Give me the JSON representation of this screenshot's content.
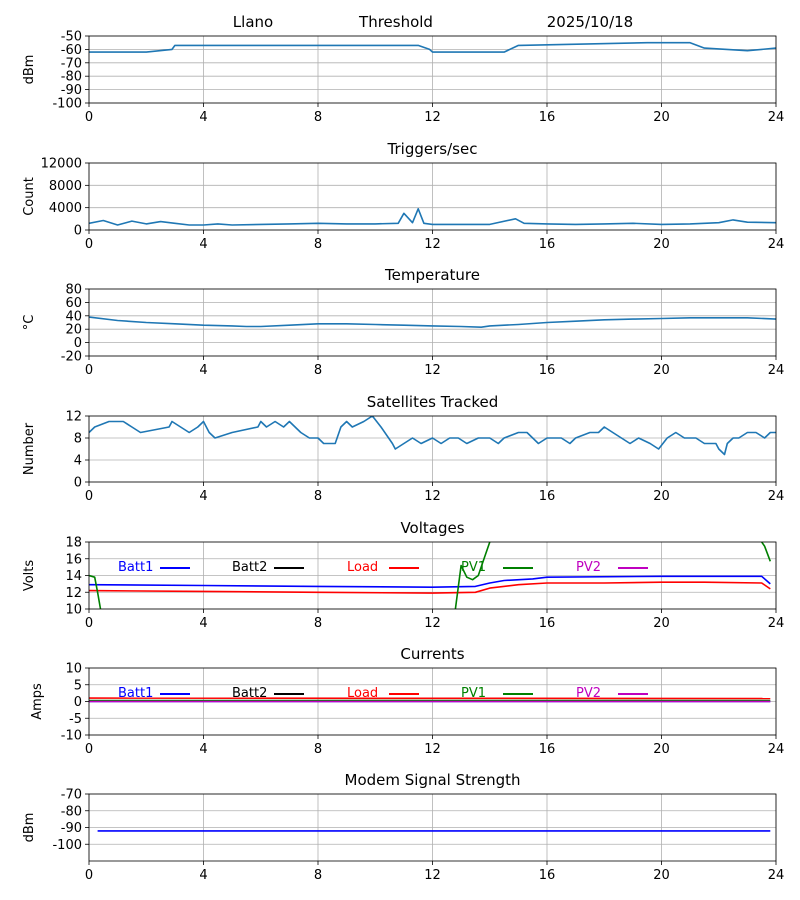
{
  "header": {
    "station": "Llano",
    "mode": "Threshold",
    "date": "2025/10/18"
  },
  "legend_entries": [
    {
      "name": "Batt1",
      "color": "#0000ff"
    },
    {
      "name": "Batt2",
      "color": "#000000"
    },
    {
      "name": "Load",
      "color": "#ff0000"
    },
    {
      "name": "PV1",
      "color": "#008000"
    },
    {
      "name": "PV2",
      "color": "#bf00bf"
    }
  ],
  "chart_data": [
    {
      "type": "line",
      "title": "",
      "ylabel": "dBm",
      "xlim": [
        0,
        24
      ],
      "ylim": [
        -100,
        -50
      ],
      "xticks": [
        0,
        4,
        8,
        12,
        16,
        20,
        24
      ],
      "yticks": [
        -100,
        -90,
        -80,
        -70,
        -60,
        -50
      ],
      "grid": true,
      "series": [
        {
          "color": "#1f77b4",
          "x": [
            0,
            2,
            2.9,
            3,
            6,
            11.5,
            11.9,
            12,
            14.5,
            15,
            19.5,
            21,
            21.5,
            23,
            24
          ],
          "y": [
            -62,
            -62,
            -60,
            -57,
            -57,
            -57,
            -60,
            -62,
            -62,
            -57,
            -55,
            -55,
            -59,
            -61,
            -59
          ]
        }
      ]
    },
    {
      "type": "line",
      "title": "Triggers/sec",
      "ylabel": "Count",
      "xlim": [
        0,
        24
      ],
      "ylim": [
        0,
        12000
      ],
      "xticks": [
        0,
        4,
        8,
        12,
        16,
        20,
        24
      ],
      "yticks": [
        0,
        4000,
        8000,
        12000
      ],
      "grid": true,
      "series": [
        {
          "color": "#1f77b4",
          "x": [
            0,
            0.5,
            1,
            1.5,
            2,
            2.5,
            3,
            3.5,
            4,
            4.5,
            5,
            6,
            7,
            8,
            9,
            10,
            10.8,
            11,
            11.3,
            11.5,
            11.7,
            12,
            13,
            14,
            14.9,
            15.2,
            16,
            17,
            18,
            19,
            20,
            21,
            22,
            22.5,
            23,
            24
          ],
          "y": [
            1200,
            1700,
            900,
            1600,
            1100,
            1500,
            1200,
            900,
            900,
            1100,
            900,
            1000,
            1100,
            1200,
            1100,
            1100,
            1200,
            3000,
            1300,
            3800,
            1200,
            1000,
            1000,
            1000,
            2000,
            1200,
            1100,
            1000,
            1100,
            1200,
            1000,
            1100,
            1300,
            1800,
            1400,
            1300
          ]
        }
      ]
    },
    {
      "type": "line",
      "title": "Temperature",
      "ylabel": "°C",
      "xlim": [
        0,
        24
      ],
      "ylim": [
        -20,
        80
      ],
      "xticks": [
        0,
        4,
        8,
        12,
        16,
        20,
        24
      ],
      "yticks": [
        -20,
        0,
        20,
        40,
        60,
        80
      ],
      "grid": true,
      "series": [
        {
          "color": "#1f77b4",
          "x": [
            0,
            1,
            2,
            3,
            4,
            5,
            5.5,
            6,
            7,
            8,
            9,
            10,
            11,
            12,
            13,
            13.7,
            14,
            15,
            16,
            17,
            18,
            19,
            20,
            21,
            22,
            23,
            24
          ],
          "y": [
            38,
            33,
            30,
            28,
            26,
            25,
            24,
            24,
            26,
            28,
            28,
            27,
            26,
            25,
            24,
            23,
            25,
            27,
            30,
            32,
            34,
            35,
            36,
            37,
            37,
            37,
            35
          ]
        }
      ]
    },
    {
      "type": "line",
      "title": "Satellites Tracked",
      "ylabel": "Number",
      "xlim": [
        0,
        24
      ],
      "ylim": [
        0,
        12
      ],
      "xticks": [
        0,
        4,
        8,
        12,
        16,
        20,
        24
      ],
      "yticks": [
        0,
        4,
        8,
        12
      ],
      "grid": true,
      "series": [
        {
          "color": "#1f77b4",
          "x": [
            0,
            0.2,
            0.7,
            1.2,
            1.5,
            1.8,
            2.8,
            2.9,
            3.2,
            3.5,
            3.8,
            4,
            4.2,
            4.4,
            5,
            5.9,
            6,
            6.2,
            6.5,
            6.8,
            7,
            7.2,
            7.4,
            7.7,
            8,
            8.2,
            8.6,
            8.8,
            9,
            9.2,
            9.6,
            9.9,
            10.2,
            10.6,
            10.7,
            11,
            11.3,
            11.6,
            12,
            12.3,
            12.6,
            12.9,
            13.2,
            13.6,
            14,
            14.3,
            14.5,
            15,
            15.3,
            15.7,
            16,
            16.5,
            16.8,
            17,
            17.5,
            17.8,
            18,
            18.3,
            18.6,
            18.9,
            19.2,
            19.6,
            19.9,
            20.2,
            20.5,
            20.8,
            21.2,
            21.5,
            21.9,
            22,
            22.2,
            22.3,
            22.5,
            22.7,
            23,
            23.3,
            23.6,
            23.8,
            24
          ],
          "y": [
            9,
            10,
            11,
            11,
            10,
            9,
            10,
            11,
            10,
            9,
            10,
            11,
            9,
            8,
            9,
            10,
            11,
            10,
            11,
            10,
            11,
            10,
            9,
            8,
            8,
            7,
            7,
            10,
            11,
            10,
            11,
            12,
            10,
            7,
            6,
            7,
            8,
            7,
            8,
            7,
            8,
            8,
            7,
            8,
            8,
            7,
            8,
            9,
            9,
            7,
            8,
            8,
            7,
            8,
            9,
            9,
            10,
            9,
            8,
            7,
            8,
            7,
            6,
            8,
            9,
            8,
            8,
            7,
            7,
            6,
            5,
            7,
            8,
            8,
            9,
            9,
            8,
            9,
            9
          ]
        }
      ]
    },
    {
      "type": "line",
      "title": "Voltages",
      "ylabel": "Volts",
      "xlim": [
        0,
        24
      ],
      "ylim": [
        10,
        18
      ],
      "xticks": [
        0,
        4,
        8,
        12,
        16,
        20,
        24
      ],
      "yticks": [
        10,
        12,
        14,
        16,
        18
      ],
      "grid": true,
      "series": [
        {
          "name": "Batt1",
          "color": "#0000ff",
          "x": [
            0,
            4,
            8,
            12,
            13.5,
            14,
            14.5,
            15.5,
            16,
            20,
            23.5,
            23.8
          ],
          "y": [
            12.9,
            12.8,
            12.7,
            12.6,
            12.7,
            13.1,
            13.4,
            13.6,
            13.8,
            13.9,
            13.9,
            13
          ]
        },
        {
          "name": "Load",
          "color": "#ff0000",
          "x": [
            0,
            4,
            8,
            12,
            13.5,
            14,
            15,
            16,
            18,
            20,
            21.5,
            23.5,
            23.8
          ],
          "y": [
            12.2,
            12.1,
            12,
            11.9,
            12,
            12.5,
            12.9,
            13.1,
            13.1,
            13.2,
            13.2,
            13.1,
            12.4
          ]
        },
        {
          "name": "PV1",
          "color": "#008000",
          "x": [
            0,
            0.2,
            0.3,
            0.4
          ],
          "y": [
            14,
            13.8,
            12,
            10
          ]
        },
        {
          "name": "PV1",
          "color": "#008000",
          "x": [
            12.8,
            13,
            13.2,
            13.4,
            13.6,
            13.8,
            14
          ],
          "y": [
            10,
            15.2,
            13.8,
            13.5,
            14,
            16,
            18
          ]
        },
        {
          "name": "PV1",
          "color": "#008000",
          "x": [
            23.5,
            23.6,
            23.8
          ],
          "y": [
            18,
            17.5,
            15.7
          ]
        }
      ]
    },
    {
      "type": "line",
      "title": "Currents",
      "ylabel": "Amps",
      "xlim": [
        0,
        24
      ],
      "ylim": [
        -10,
        10
      ],
      "xticks": [
        0,
        4,
        8,
        12,
        16,
        20,
        24
      ],
      "yticks": [
        -10,
        -5,
        0,
        5,
        10
      ],
      "grid": true,
      "series": [
        {
          "name": "Batt1",
          "color": "#0000ff",
          "x": [
            0,
            23.8
          ],
          "y": [
            0,
            0
          ]
        },
        {
          "name": "Load",
          "color": "#ff0000",
          "x": [
            0,
            23.8
          ],
          "y": [
            1,
            0.9
          ]
        },
        {
          "name": "PV1",
          "color": "#008000",
          "x": [
            0,
            23.8
          ],
          "y": [
            0.3,
            0.3
          ]
        },
        {
          "name": "PV2",
          "color": "#bf00bf",
          "x": [
            0,
            23.8
          ],
          "y": [
            0,
            0
          ]
        }
      ]
    },
    {
      "type": "line",
      "title": "Modem Signal Strength",
      "ylabel": "dBm",
      "xlim": [
        0,
        24
      ],
      "ylim": [
        -110,
        -70
      ],
      "xticks": [
        0,
        4,
        8,
        12,
        16,
        20,
        24
      ],
      "yticks": [
        -100,
        -90,
        -80,
        -70
      ],
      "grid": true,
      "series": [
        {
          "color": "#0000ff",
          "x": [
            0.3,
            23.8
          ],
          "y": [
            -92,
            -92
          ]
        }
      ]
    }
  ]
}
